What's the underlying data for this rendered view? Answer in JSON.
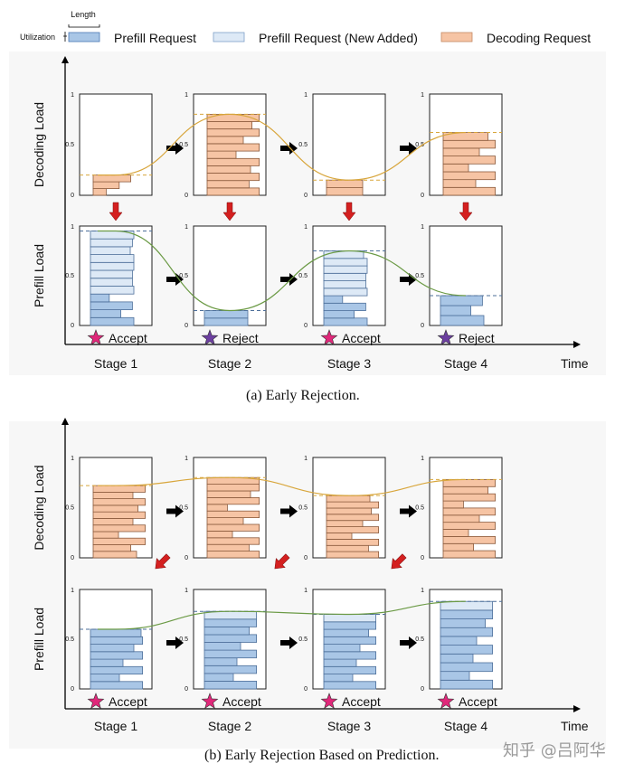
{
  "legend": {
    "length_label": "Length",
    "utilization_label": "Utilization",
    "items": [
      {
        "label": "Prefill Request",
        "fill": "#a9c6e6",
        "stroke": "#4a78b5"
      },
      {
        "label": "Prefill Request (New Added)",
        "fill": "#dde9f6",
        "stroke": "#7f9fc8"
      },
      {
        "label": "Decoding Request",
        "fill": "#f6c4a4",
        "stroke": "#c48a64"
      }
    ]
  },
  "colors": {
    "prefill": "#a9c6e6",
    "prefill_stroke": "#4d6f9a",
    "prefill_new": "#dde9f6",
    "decoding": "#f6c4a4",
    "decoding_stroke": "#8b5a3c",
    "decode_curve": "#d8a63c",
    "prefill_curve": "#6b9a45",
    "red_arrow": "#d42020",
    "accept_star": "#e0287a",
    "reject_star": "#6c3fa0"
  },
  "panels": [
    {
      "caption": "(a) Early Rejection.",
      "y_labels": {
        "decoding": "Decoding Load",
        "prefill": "Prefill Load"
      },
      "ticks": [
        "0",
        "0.5",
        "1"
      ],
      "time_label": "Time",
      "stages": [
        {
          "name": "Stage 1",
          "status": "Accept",
          "star": "accept",
          "decode_level": 0.2,
          "prefill_level": 0.95,
          "decode_bars": [
            0.18,
            0.36,
            0.52
          ],
          "prefill_bars": [
            0.6,
            0.42,
            0.58,
            0.26,
            0.6,
            0.58,
            0.58,
            0.6,
            0.6,
            0.55,
            0.58,
            0.6
          ]
        },
        {
          "name": "Stage 2",
          "status": "Reject",
          "star": "reject",
          "decode_level": 0.8,
          "prefill_level": 0.15,
          "decode_bars": [
            0.72,
            0.58,
            0.72,
            0.6,
            0.72,
            0.4,
            0.72,
            0.5,
            0.72,
            0.62,
            0.72
          ],
          "prefill_bars": [
            0.6,
            0.6
          ]
        },
        {
          "name": "Stage 3",
          "status": "Accept",
          "star": "accept",
          "decode_level": 0.15,
          "prefill_level": 0.75,
          "decode_bars": [
            0.5,
            0.5
          ],
          "prefill_bars": [
            0.6,
            0.42,
            0.58,
            0.26,
            0.6,
            0.58,
            0.58,
            0.6,
            0.6,
            0.55
          ]
        },
        {
          "name": "Stage 4",
          "status": "Reject",
          "star": "reject",
          "decode_level": 0.62,
          "prefill_level": 0.3,
          "decode_bars": [
            0.72,
            0.45,
            0.72,
            0.35,
            0.72,
            0.5,
            0.72,
            0.62
          ],
          "prefill_bars": [
            0.6,
            0.42,
            0.58
          ]
        }
      ]
    },
    {
      "caption": "(b) Early Rejection Based on Prediction.",
      "y_labels": {
        "decoding": "Decoding Load",
        "prefill": "Prefill Load"
      },
      "ticks": [
        "0",
        "0.5",
        "1"
      ],
      "time_label": "Time",
      "stages": [
        {
          "name": "Stage 1",
          "status": "Accept",
          "star": "accept",
          "decode_level": 0.72,
          "prefill_level": 0.6,
          "decode_bars": [
            0.6,
            0.52,
            0.72,
            0.35,
            0.72,
            0.55,
            0.72,
            0.62,
            0.72,
            0.55,
            0.72
          ],
          "prefill_bars": [
            0.72,
            0.4,
            0.72,
            0.45,
            0.72,
            0.6,
            0.72,
            0.7
          ]
        },
        {
          "name": "Stage 2",
          "status": "Accept",
          "star": "accept",
          "decode_level": 0.8,
          "prefill_level": 0.78,
          "decode_bars": [
            0.72,
            0.58,
            0.72,
            0.35,
            0.72,
            0.5,
            0.72,
            0.28,
            0.72,
            0.6,
            0.72,
            0.72
          ],
          "prefill_bars": [
            0.72,
            0.4,
            0.72,
            0.45,
            0.72,
            0.5,
            0.72,
            0.62,
            0.72,
            0.72
          ]
        },
        {
          "name": "Stage 3",
          "status": "Accept",
          "star": "accept",
          "decode_level": 0.62,
          "prefill_level": 0.75,
          "decode_bars": [
            0.72,
            0.58,
            0.72,
            0.35,
            0.72,
            0.5,
            0.72,
            0.62,
            0.72,
            0.6
          ],
          "prefill_bars": [
            0.72,
            0.4,
            0.72,
            0.45,
            0.72,
            0.5,
            0.72,
            0.62,
            0.72,
            0.72
          ]
        },
        {
          "name": "Stage 4",
          "status": "Accept",
          "star": "accept",
          "decode_level": 0.78,
          "prefill_level": 0.88,
          "decode_bars": [
            0.72,
            0.42,
            0.72,
            0.35,
            0.72,
            0.5,
            0.72,
            0.28,
            0.72,
            0.62,
            0.72
          ],
          "prefill_bars": [
            0.72,
            0.4,
            0.72,
            0.45,
            0.72,
            0.5,
            0.72,
            0.62,
            0.72,
            0.72
          ]
        }
      ]
    }
  ],
  "watermark": "知乎 @吕阿华"
}
